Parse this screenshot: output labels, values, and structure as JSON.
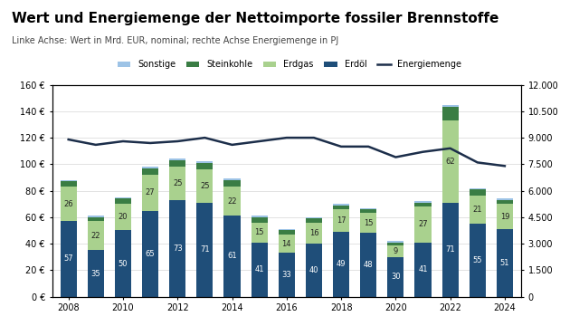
{
  "chart_data": {
    "type": "bar",
    "title": "Wert und Energiemenge der Nettoimporte fossiler Brennstoffe",
    "subtitle": "Linke Achse: Wert in Mrd. EUR, nominal; rechte Achse Energiemenge in PJ",
    "categories": [
      "2008",
      null,
      "2010",
      null,
      "2012",
      null,
      "2014",
      null,
      "2016",
      null,
      "2018",
      null,
      "2020",
      null,
      "2022",
      null,
      "2024"
    ],
    "stacked": true,
    "grid": true,
    "legend": "upper center",
    "ylim": [
      0,
      160
    ],
    "yticks": [
      {
        "value": 0,
        "label": "0 €"
      },
      {
        "value": 20,
        "label": "20 €"
      },
      {
        "value": 40,
        "label": "40 €"
      },
      {
        "value": 60,
        "label": "60 €"
      },
      {
        "value": 80,
        "label": "80 €"
      },
      {
        "value": 100,
        "label": "100 €"
      },
      {
        "value": 120,
        "label": "120 €"
      },
      {
        "value": 140,
        "label": "140 €"
      },
      {
        "value": 160,
        "label": "160 €"
      }
    ],
    "y2lim": [
      0,
      12000
    ],
    "y2ticks": [
      {
        "value": 0,
        "label": "0"
      },
      {
        "value": 1500,
        "label": "1.500"
      },
      {
        "value": 3000,
        "label": "3.000"
      },
      {
        "value": 4500,
        "label": "4.500"
      },
      {
        "value": 6000,
        "label": "6.000"
      },
      {
        "value": 7500,
        "label": "7.500"
      },
      {
        "value": 9000,
        "label": "9.000"
      },
      {
        "value": 10500,
        "label": "10.500"
      },
      {
        "value": 12000,
        "label": "12.000"
      }
    ],
    "series": [
      {
        "name": "Sonstige",
        "type": "bar",
        "color": "#9dc3e6",
        "values": [
          1,
          1,
          1,
          1,
          1,
          1,
          1,
          1,
          1,
          1,
          1,
          1,
          1,
          1,
          2,
          1,
          1
        ]
      },
      {
        "name": "Steinkohle",
        "type": "bar",
        "color": "#3a7d44",
        "values": [
          4,
          3,
          4,
          5,
          5,
          5,
          5,
          4,
          3,
          3,
          3,
          3,
          2,
          3,
          10,
          5,
          3
        ]
      },
      {
        "name": "Erdgas",
        "type": "bar",
        "color": "#a9d18e",
        "data_labels": true,
        "values": [
          26,
          22,
          20,
          27,
          25,
          25,
          22,
          15,
          14,
          16,
          17,
          15,
          9,
          27,
          62,
          21,
          19
        ]
      },
      {
        "name": "Erdöl",
        "type": "bar",
        "color": "#1f4e79",
        "data_labels": true,
        "values": [
          57,
          35,
          50,
          65,
          73,
          71,
          61,
          41,
          33,
          40,
          49,
          48,
          30,
          41,
          71,
          55,
          51
        ]
      },
      {
        "name": "Energiemenge",
        "type": "line",
        "axis": "y2",
        "color": "#1c2e4a",
        "values": [
          8900,
          8600,
          8800,
          8700,
          8800,
          9000,
          8600,
          8800,
          9000,
          9000,
          8500,
          8500,
          7900,
          8200,
          8400,
          7600,
          7400
        ]
      }
    ]
  }
}
